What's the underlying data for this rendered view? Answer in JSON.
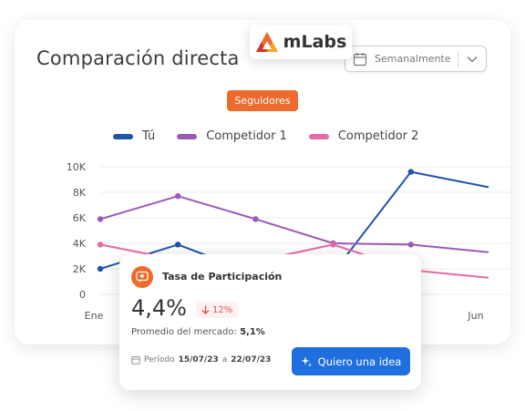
{
  "logo": {
    "name": "mLabs"
  },
  "card": {
    "title": "Comparación directa"
  },
  "period_select": {
    "value": "Semanalmente"
  },
  "metric_pill": {
    "label": "Seguidores"
  },
  "colors": {
    "tu": "#1f56a8",
    "competidor1": "#9b59b6",
    "competidor2": "#e86aa6",
    "accent": "#ec6b2d",
    "button": "#1f6fe0"
  },
  "chart_data": {
    "type": "line",
    "x_tick_labels": [
      "Ene",
      "Jun"
    ],
    "y_tick_labels": [
      "0",
      "2K",
      "4K",
      "6K",
      "8K",
      "10K"
    ],
    "ylim": [
      0,
      10000
    ],
    "x": [
      0,
      1,
      2,
      3,
      4,
      5
    ],
    "legend_position": "top",
    "grid": true,
    "series": [
      {
        "name": "Tú",
        "color": "#1f56a8",
        "values": [
          2000,
          3900,
          1600,
          1700,
          9600,
          8400
        ]
      },
      {
        "name": "Competidor 1",
        "color": "#9b59b6",
        "values": [
          5900,
          7700,
          5900,
          4000,
          3900,
          3300
        ]
      },
      {
        "name": "Competidor 2",
        "color": "#e86aa6",
        "values": [
          3900,
          2700,
          2600,
          3900,
          1900,
          1300
        ]
      }
    ]
  },
  "popup": {
    "title": "Tasa de Participación",
    "value": "4,4%",
    "delta": "12%",
    "avg_label": "Promedio del mercado:",
    "avg_value": "5,1%",
    "period_label": "Período",
    "period_from": "15/07/23",
    "period_sep": "a",
    "period_to": "22/07/23",
    "button_label": "Quiero una idea"
  }
}
